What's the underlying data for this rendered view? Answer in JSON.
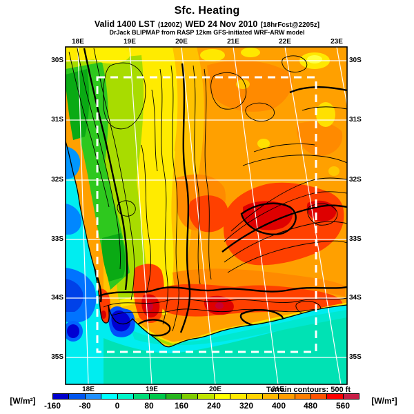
{
  "header": {
    "title": "Sfc. Heating",
    "valid_label": "Valid 1400 LST",
    "init_time": "(1200Z)",
    "date_label": "WED 24 Nov 2010",
    "fcst_label": "[18hrFcst@2205z]",
    "model_line": "DrJack BLIPMAP from RASP 12km GFS-initiated WRF-ARW model"
  },
  "map": {
    "top_axis_labels": [
      "18E",
      "19E",
      "20E",
      "21E",
      "22E",
      "23E"
    ],
    "bottom_axis_labels": [
      "18E",
      "19E",
      "20E",
      "21E"
    ],
    "left_axis_labels": [
      "30S",
      "31S",
      "32S",
      "33S",
      "34S",
      "35S"
    ],
    "right_axis_labels": [
      "30S",
      "31S",
      "32S",
      "33S",
      "34S",
      "35S"
    ],
    "terrain_note": "Terrain contours: 500 ft",
    "grid_color": "#ffffff",
    "domain_box_style": "white-dashed",
    "sea_color": "#00EDF0",
    "land_base_color": "#FFA000"
  },
  "colorbar": {
    "units_left": "[W/m²]",
    "units_right": "[W/m²]",
    "tick_labels": [
      "-160",
      "-80",
      "0",
      "80",
      "160",
      "240",
      "320",
      "400",
      "480",
      "560"
    ],
    "value_min": -160,
    "value_max": 600,
    "segment_step": 40,
    "segment_colors": [
      "#0000CD",
      "#0055EE",
      "#1E90FF",
      "#00FFFF",
      "#00F5C8",
      "#00DC78",
      "#00C84B",
      "#27B51E",
      "#7FCC00",
      "#BFE400",
      "#FFFF00",
      "#FFEA00",
      "#FFD300",
      "#FFB800",
      "#FF9C00",
      "#FF7E00",
      "#FF5200",
      "#FF0000",
      "#C81E46"
    ]
  }
}
